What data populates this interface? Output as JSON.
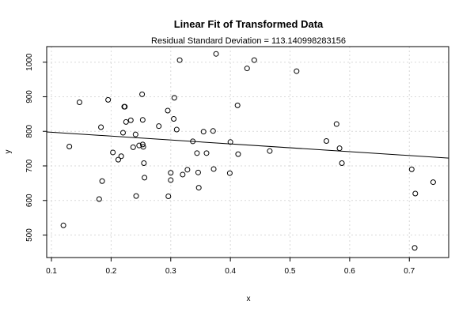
{
  "chart_data": {
    "type": "scatter",
    "title": "Linear Fit of Transformed Data",
    "subtitle": "Residual Standard Deviation =  113.140998283156",
    "xlabel": "x",
    "ylabel": "y",
    "xlim": [
      0.092,
      0.766
    ],
    "ylim": [
      435,
      1045
    ],
    "x_ticks": [
      0.1,
      0.2,
      0.3,
      0.4,
      0.5,
      0.6,
      0.7
    ],
    "x_tick_labels": [
      "0.1",
      "0.2",
      "0.3",
      "0.4",
      "0.5",
      "0.6",
      "0.7"
    ],
    "y_ticks": [
      500,
      600,
      700,
      800,
      900,
      1000
    ],
    "y_tick_labels": [
      "500",
      "600",
      "700",
      "800",
      "900",
      "1000"
    ],
    "grid": true,
    "legend": "none",
    "fit_line": {
      "intercept": 808.7,
      "slope": -112.5
    },
    "points": [
      {
        "x": 0.12,
        "y": 528
      },
      {
        "x": 0.13,
        "y": 756
      },
      {
        "x": 0.147,
        "y": 884
      },
      {
        "x": 0.18,
        "y": 604
      },
      {
        "x": 0.183,
        "y": 812
      },
      {
        "x": 0.185,
        "y": 656
      },
      {
        "x": 0.195,
        "y": 891
      },
      {
        "x": 0.203,
        "y": 739
      },
      {
        "x": 0.212,
        "y": 718
      },
      {
        "x": 0.217,
        "y": 728
      },
      {
        "x": 0.22,
        "y": 796
      },
      {
        "x": 0.222,
        "y": 871
      },
      {
        "x": 0.223,
        "y": 871
      },
      {
        "x": 0.225,
        "y": 827
      },
      {
        "x": 0.233,
        "y": 832
      },
      {
        "x": 0.237,
        "y": 754
      },
      {
        "x": 0.241,
        "y": 791
      },
      {
        "x": 0.242,
        "y": 613
      },
      {
        "x": 0.247,
        "y": 759
      },
      {
        "x": 0.252,
        "y": 907
      },
      {
        "x": 0.253,
        "y": 833
      },
      {
        "x": 0.253,
        "y": 762
      },
      {
        "x": 0.254,
        "y": 755
      },
      {
        "x": 0.255,
        "y": 708
      },
      {
        "x": 0.256,
        "y": 666
      },
      {
        "x": 0.28,
        "y": 815
      },
      {
        "x": 0.295,
        "y": 860
      },
      {
        "x": 0.296,
        "y": 612
      },
      {
        "x": 0.3,
        "y": 680
      },
      {
        "x": 0.3,
        "y": 659
      },
      {
        "x": 0.305,
        "y": 836
      },
      {
        "x": 0.306,
        "y": 897
      },
      {
        "x": 0.31,
        "y": 805
      },
      {
        "x": 0.315,
        "y": 1006
      },
      {
        "x": 0.32,
        "y": 675
      },
      {
        "x": 0.328,
        "y": 689
      },
      {
        "x": 0.337,
        "y": 771
      },
      {
        "x": 0.344,
        "y": 737
      },
      {
        "x": 0.346,
        "y": 681
      },
      {
        "x": 0.347,
        "y": 637
      },
      {
        "x": 0.355,
        "y": 799
      },
      {
        "x": 0.36,
        "y": 737
      },
      {
        "x": 0.371,
        "y": 801
      },
      {
        "x": 0.372,
        "y": 691
      },
      {
        "x": 0.376,
        "y": 1024
      },
      {
        "x": 0.399,
        "y": 679
      },
      {
        "x": 0.4,
        "y": 769
      },
      {
        "x": 0.412,
        "y": 875
      },
      {
        "x": 0.413,
        "y": 734
      },
      {
        "x": 0.428,
        "y": 982
      },
      {
        "x": 0.44,
        "y": 1006
      },
      {
        "x": 0.466,
        "y": 743
      },
      {
        "x": 0.511,
        "y": 974
      },
      {
        "x": 0.561,
        "y": 772
      },
      {
        "x": 0.578,
        "y": 821
      },
      {
        "x": 0.583,
        "y": 751
      },
      {
        "x": 0.587,
        "y": 708
      },
      {
        "x": 0.704,
        "y": 690
      },
      {
        "x": 0.71,
        "y": 620
      },
      {
        "x": 0.709,
        "y": 463
      },
      {
        "x": 0.74,
        "y": 653
      }
    ]
  }
}
